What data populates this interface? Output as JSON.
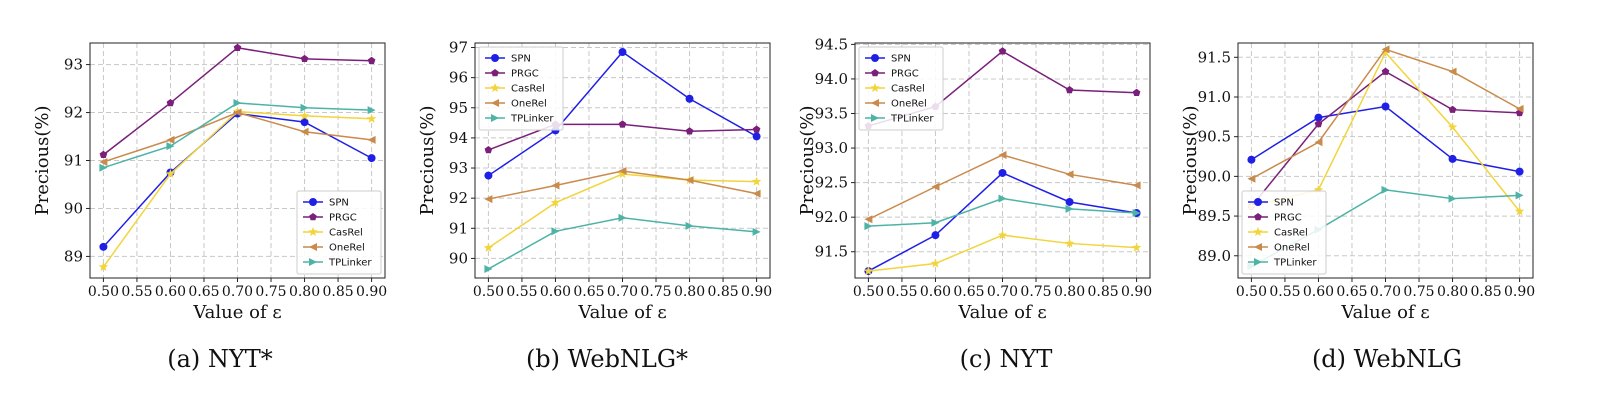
{
  "colors": {
    "SPN": "#1f1fe6",
    "PRGC": "#7a1f7a",
    "CasRel": "#f2d43c",
    "OneRel": "#c98a4b",
    "TPLinker": "#4db3a6"
  },
  "chart_data": [
    {
      "type": "line",
      "caption": "(a) NYT*",
      "xlabel": "Value of ε",
      "ylabel": "Precious(%)",
      "x": [
        0.5,
        0.6,
        0.7,
        0.8,
        0.9
      ],
      "x_tick_labels": [
        "0.50",
        "0.55",
        "0.60",
        "0.65",
        "0.70",
        "0.75",
        "0.80",
        "0.85",
        "0.90"
      ],
      "xlim": [
        0.48,
        0.92
      ],
      "ylim": [
        88.55,
        93.45
      ],
      "yticks": [
        89,
        90,
        91,
        92,
        93
      ],
      "legend_position": "lower-right",
      "series": [
        {
          "name": "SPN",
          "marker": "circle",
          "values": [
            89.2,
            90.75,
            91.98,
            91.8,
            91.05
          ]
        },
        {
          "name": "PRGC",
          "marker": "pentagon",
          "values": [
            91.12,
            92.2,
            93.35,
            93.12,
            93.08
          ]
        },
        {
          "name": "CasRel",
          "marker": "star",
          "values": [
            88.78,
            90.72,
            92.02,
            91.93,
            91.87
          ]
        },
        {
          "name": "OneRel",
          "marker": "triangle-left",
          "values": [
            90.97,
            91.43,
            92.0,
            91.6,
            91.43
          ]
        },
        {
          "name": "TPLinker",
          "marker": "triangle-right",
          "values": [
            90.85,
            91.3,
            92.2,
            92.1,
            92.05
          ]
        }
      ]
    },
    {
      "type": "line",
      "caption": "(b) WebNLG*",
      "xlabel": "Value of ε",
      "ylabel": "Precious(%)",
      "x": [
        0.5,
        0.6,
        0.7,
        0.8,
        0.9
      ],
      "x_tick_labels": [
        "0.50",
        "0.55",
        "0.60",
        "0.65",
        "0.70",
        "0.75",
        "0.80",
        "0.85",
        "0.90"
      ],
      "xlim": [
        0.48,
        0.92
      ],
      "ylim": [
        89.35,
        97.15
      ],
      "yticks": [
        90,
        91,
        92,
        93,
        94,
        95,
        96,
        97
      ],
      "legend_position": "upper-left",
      "series": [
        {
          "name": "SPN",
          "marker": "circle",
          "values": [
            92.75,
            94.25,
            96.85,
            95.3,
            94.05
          ]
        },
        {
          "name": "PRGC",
          "marker": "pentagon",
          "values": [
            93.6,
            94.45,
            94.45,
            94.22,
            94.28
          ]
        },
        {
          "name": "CasRel",
          "marker": "star",
          "values": [
            90.35,
            91.85,
            92.8,
            92.6,
            92.55
          ]
        },
        {
          "name": "OneRel",
          "marker": "triangle-left",
          "values": [
            91.97,
            92.42,
            92.9,
            92.6,
            92.15
          ]
        },
        {
          "name": "TPLinker",
          "marker": "triangle-right",
          "values": [
            89.65,
            90.9,
            91.35,
            91.08,
            90.88
          ]
        }
      ]
    },
    {
      "type": "line",
      "caption": "(c) NYT",
      "xlabel": "Value of ε",
      "ylabel": "Precious(%)",
      "x": [
        0.5,
        0.6,
        0.7,
        0.8,
        0.9
      ],
      "x_tick_labels": [
        "0.50",
        "0.55",
        "0.60",
        "0.65",
        "0.70",
        "0.75",
        "0.80",
        "0.85",
        "0.90"
      ],
      "xlim": [
        0.48,
        0.92
      ],
      "ylim": [
        91.12,
        94.52
      ],
      "yticks": [
        91.5,
        92.0,
        92.5,
        93.0,
        93.5,
        94.0,
        94.5
      ],
      "ytick_labels": [
        "91.5",
        "92.0",
        "92.5",
        "93.0",
        "93.5",
        "94.0",
        "94.5"
      ],
      "legend_position": "upper-left",
      "series": [
        {
          "name": "SPN",
          "marker": "circle",
          "values": [
            91.22,
            91.74,
            92.64,
            92.22,
            92.06
          ]
        },
        {
          "name": "PRGC",
          "marker": "pentagon",
          "values": [
            93.32,
            93.6,
            94.4,
            93.84,
            93.8
          ]
        },
        {
          "name": "CasRel",
          "marker": "star",
          "values": [
            91.22,
            91.33,
            91.74,
            91.62,
            91.56
          ]
        },
        {
          "name": "OneRel",
          "marker": "triangle-left",
          "values": [
            91.97,
            92.44,
            92.9,
            92.62,
            92.46
          ]
        },
        {
          "name": "TPLinker",
          "marker": "triangle-right",
          "values": [
            91.87,
            91.92,
            92.27,
            92.12,
            92.06
          ]
        }
      ]
    },
    {
      "type": "line",
      "caption": "(d) WebNLG",
      "xlabel": "Value of ε",
      "ylabel": "Precious(%)",
      "x": [
        0.5,
        0.6,
        0.7,
        0.8,
        0.9
      ],
      "x_tick_labels": [
        "0.50",
        "0.55",
        "0.60",
        "0.65",
        "0.70",
        "0.75",
        "0.80",
        "0.85",
        "0.90"
      ],
      "xlim": [
        0.48,
        0.92
      ],
      "ylim": [
        88.72,
        91.68
      ],
      "yticks": [
        89.0,
        89.5,
        90.0,
        90.5,
        91.0,
        91.5
      ],
      "ytick_labels": [
        "89.0",
        "89.5",
        "90.0",
        "90.5",
        "91.0",
        "91.5"
      ],
      "legend_position": "lower-left",
      "series": [
        {
          "name": "SPN",
          "marker": "circle",
          "values": [
            90.21,
            90.74,
            90.88,
            90.22,
            90.06
          ]
        },
        {
          "name": "PRGC",
          "marker": "pentagon",
          "values": [
            89.62,
            90.66,
            91.32,
            90.84,
            90.8
          ]
        },
        {
          "name": "CasRel",
          "marker": "star",
          "values": [
            89.62,
            89.83,
            91.56,
            90.62,
            89.56
          ]
        },
        {
          "name": "OneRel",
          "marker": "triangle-left",
          "values": [
            89.97,
            90.43,
            91.6,
            91.32,
            90.85
          ]
        },
        {
          "name": "TPLinker",
          "marker": "triangle-right",
          "values": [
            88.87,
            89.33,
            89.83,
            89.72,
            89.76
          ]
        }
      ]
    }
  ]
}
